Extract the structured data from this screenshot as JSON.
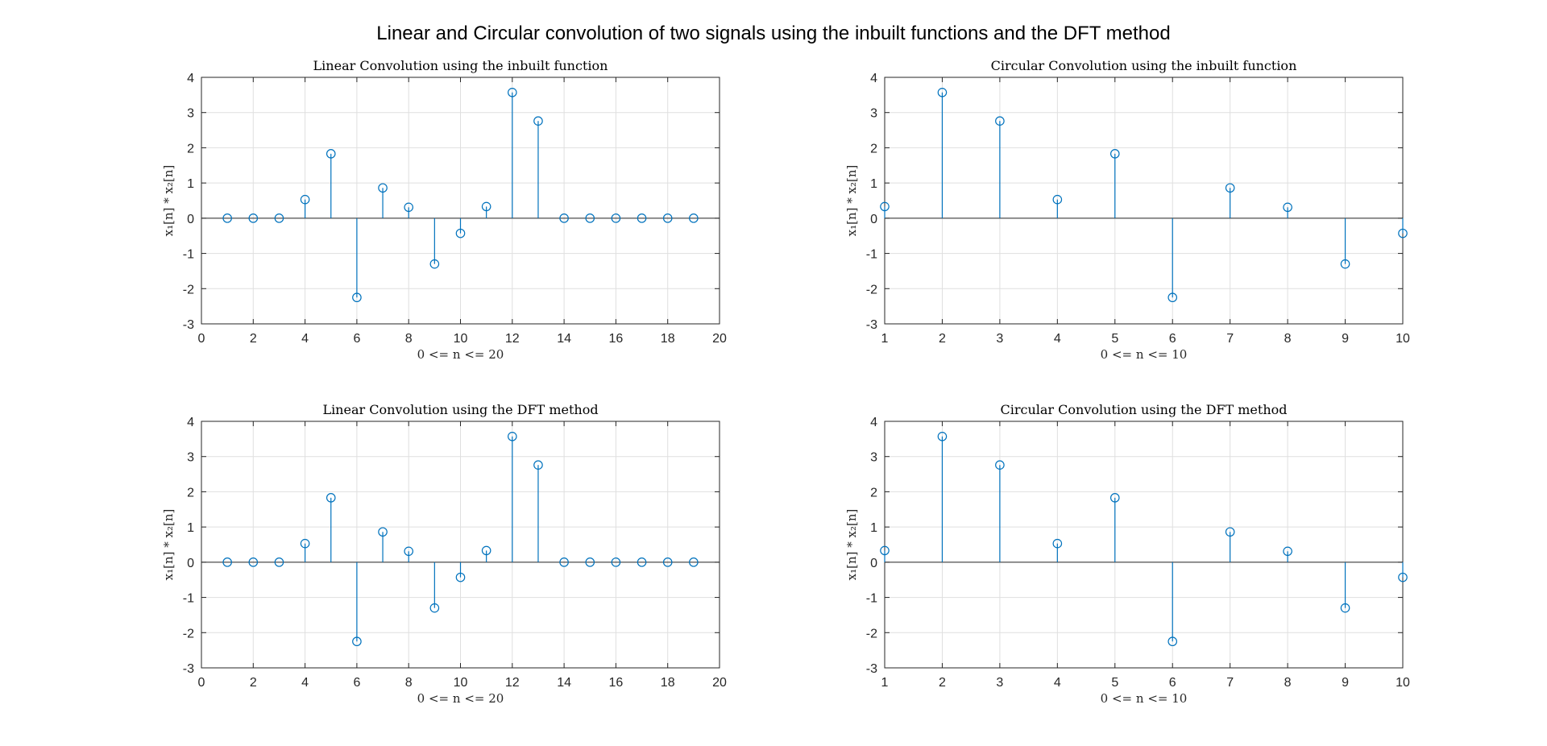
{
  "title": "Linear and Circular convolution of two signals using the inbuilt functions and the DFT method",
  "colors": {
    "stem": "#0072BD",
    "axis": "#262626",
    "grid": "#DFDFDF",
    "baseline": "#262626"
  },
  "chart_data": [
    {
      "type": "stem",
      "title": "Linear Convolution using the inbuilt function",
      "xlabel": "0 <= n <= 20",
      "ylabel": "x₁[n] * x₂[n]",
      "xlim": [
        0,
        20
      ],
      "ylim": [
        -3,
        4
      ],
      "xticks": [
        "0",
        "2",
        "4",
        "6",
        "8",
        "10",
        "12",
        "14",
        "16",
        "18",
        "20"
      ],
      "yticks": [
        "-3",
        "-2",
        "-1",
        "0",
        "1",
        "2",
        "3",
        "4"
      ],
      "grid": true,
      "x": [
        1,
        2,
        3,
        4,
        5,
        6,
        7,
        8,
        9,
        10,
        11,
        12,
        13,
        14,
        15,
        16,
        17,
        18,
        19
      ],
      "y": [
        0,
        0,
        0,
        0.53,
        1.83,
        -2.25,
        0.86,
        0.31,
        -1.3,
        -0.43,
        0.33,
        3.57,
        2.76,
        0,
        0,
        0,
        0,
        0,
        0
      ]
    },
    {
      "type": "stem",
      "title": "Circular Convolution using the inbuilt function",
      "xlabel": "0 <= n <= 10",
      "ylabel": "x₁[n] * x₂[n]",
      "xlim": [
        1,
        10
      ],
      "ylim": [
        -3,
        4
      ],
      "xticks": [
        "1",
        "2",
        "3",
        "4",
        "5",
        "6",
        "7",
        "8",
        "9",
        "10"
      ],
      "yticks": [
        "-3",
        "-2",
        "-1",
        "0",
        "1",
        "2",
        "3",
        "4"
      ],
      "grid": true,
      "x": [
        1,
        2,
        3,
        4,
        5,
        6,
        7,
        8,
        9,
        10
      ],
      "y": [
        0.33,
        3.57,
        2.76,
        0.53,
        1.83,
        -2.25,
        0.86,
        0.31,
        -1.3,
        -0.43
      ]
    },
    {
      "type": "stem",
      "title": "Linear Convolution using the DFT method",
      "xlabel": "0 <= n <= 20",
      "ylabel": "x₁[n] * x₂[n]",
      "xlim": [
        0,
        20
      ],
      "ylim": [
        -3,
        4
      ],
      "xticks": [
        "0",
        "2",
        "4",
        "6",
        "8",
        "10",
        "12",
        "14",
        "16",
        "18",
        "20"
      ],
      "yticks": [
        "-3",
        "-2",
        "-1",
        "0",
        "1",
        "2",
        "3",
        "4"
      ],
      "grid": true,
      "x": [
        1,
        2,
        3,
        4,
        5,
        6,
        7,
        8,
        9,
        10,
        11,
        12,
        13,
        14,
        15,
        16,
        17,
        18,
        19
      ],
      "y": [
        0,
        0,
        0,
        0.53,
        1.83,
        -2.25,
        0.86,
        0.31,
        -1.3,
        -0.43,
        0.33,
        3.57,
        2.76,
        0,
        0,
        0,
        0,
        0,
        0
      ]
    },
    {
      "type": "stem",
      "title": "Circular Convolution using the DFT method",
      "xlabel": "0 <= n <= 10",
      "ylabel": "x₁[n] * x₂[n]",
      "xlim": [
        1,
        10
      ],
      "ylim": [
        -3,
        4
      ],
      "xticks": [
        "1",
        "2",
        "3",
        "4",
        "5",
        "6",
        "7",
        "8",
        "9",
        "10"
      ],
      "yticks": [
        "-3",
        "-2",
        "-1",
        "0",
        "1",
        "2",
        "3",
        "4"
      ],
      "grid": true,
      "x": [
        1,
        2,
        3,
        4,
        5,
        6,
        7,
        8,
        9,
        10
      ],
      "y": [
        0.33,
        3.57,
        2.76,
        0.53,
        1.83,
        -2.25,
        0.86,
        0.31,
        -1.3,
        -0.43
      ]
    }
  ]
}
